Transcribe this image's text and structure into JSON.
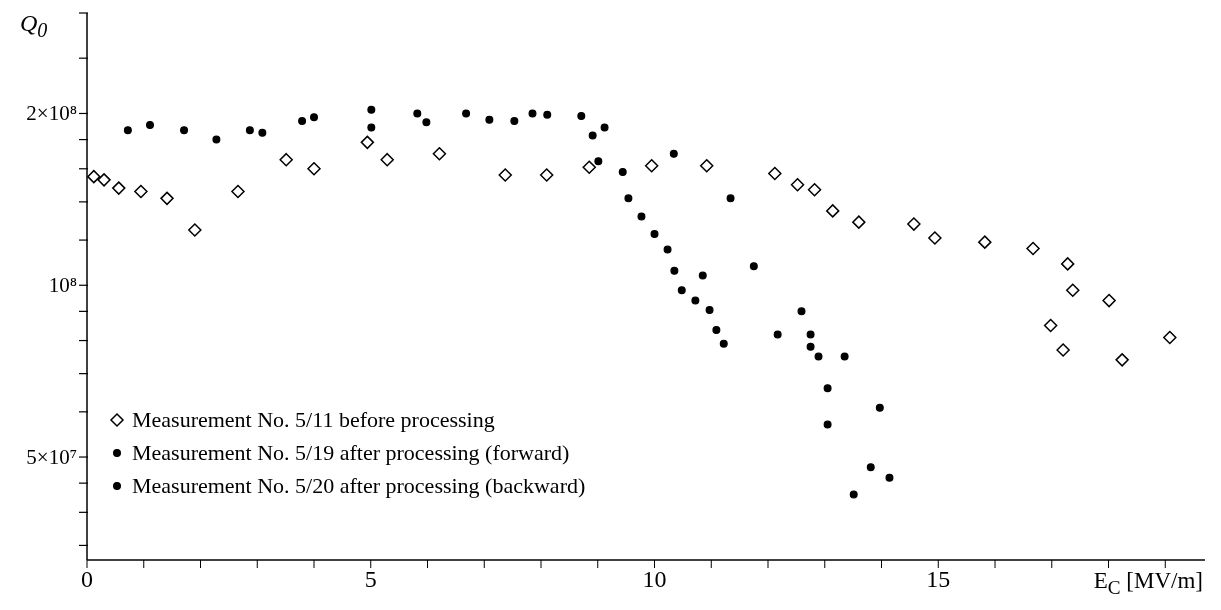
{
  "chart_data": {
    "type": "scatter",
    "xlabel": "E$_{C}$ [MV/m]",
    "ylabel": "Q$_{0}$",
    "log": "y",
    "legend": "bottom left",
    "xlim": [
      0,
      19.7
    ],
    "xticks": [
      0,
      {
        "value": 1,
        "label": null
      },
      {
        "value": 2,
        "label": null
      },
      {
        "value": 3,
        "label": null
      },
      {
        "value": 4,
        "label": null
      },
      5,
      {
        "value": 6,
        "label": null
      },
      {
        "value": 7,
        "label": null
      },
      {
        "value": 8,
        "label": null
      },
      {
        "value": 9,
        "label": null
      },
      10,
      {
        "value": 11,
        "label": null
      },
      {
        "value": 12,
        "label": null
      },
      {
        "value": 13,
        "label": null
      },
      {
        "value": 14,
        "label": null
      },
      15,
      {
        "value": 16,
        "label": null
      },
      {
        "value": 17,
        "label": null
      },
      {
        "value": 18,
        "label": null
      },
      {
        "value": 19,
        "label": null
      }
    ],
    "ylim": [
      33000000,
      300000000
    ],
    "yticks": [
      {
        "value": 35000000,
        "label": null
      },
      {
        "value": 40000000,
        "label": null
      },
      {
        "value": 45000000,
        "label": null
      },
      {
        "value": 50000000,
        "label": "5×10⁷"
      },
      {
        "value": 60000000,
        "label": null
      },
      {
        "value": 70000000,
        "label": null
      },
      {
        "value": 80000000,
        "label": null
      },
      {
        "value": 90000000,
        "label": null
      },
      {
        "value": 100000000,
        "label": "10⁸"
      },
      {
        "value": 120000000,
        "label": null
      },
      {
        "value": 140000000,
        "label": null
      },
      {
        "value": 160000000,
        "label": null
      },
      {
        "value": 180000000,
        "label": null
      },
      {
        "value": 200000000,
        "label": "2×10⁸"
      },
      {
        "value": 250000000,
        "label": null
      },
      {
        "value": 300000000,
        "label": null
      }
    ],
    "series": [
      {
        "name": "Measurement No. 5/11 before processing",
        "color": "#000000",
        "marker": "diamond",
        "x": [
          0.12,
          0.3,
          0.56,
          0.95,
          1.41,
          1.9,
          2.66,
          3.51,
          4.0,
          4.94,
          5.29,
          6.21,
          7.37,
          8.1,
          8.85,
          9.95,
          10.92,
          12.12,
          12.52,
          12.82,
          13.14,
          13.6,
          14.57,
          14.94,
          15.82,
          16.67,
          17.28,
          17.37,
          18.01,
          16.98,
          17.2,
          18.24,
          19.08
        ],
        "values": [
          155000000,
          153000000,
          148000000,
          146000000,
          142000000,
          125000000,
          146000000,
          166000000,
          160000000,
          178000000,
          166000000,
          170000000,
          156000000,
          156000000,
          161000000,
          162000000,
          162000000,
          157000000,
          150000000,
          147000000,
          135000000,
          129000000,
          128000000,
          121000000,
          119000000,
          116000000,
          109000000,
          98000000,
          94000000,
          85000000,
          77000000,
          74000000,
          81000000
        ]
      },
      {
        "name": "Measurement No. 5/19 after processing (forward)",
        "color": "#000000",
        "marker": "circle",
        "x": [
          0.72,
          1.11,
          1.71,
          2.28,
          3.09,
          4.0,
          5.01,
          5.98,
          7.09,
          7.53,
          8.11,
          8.71,
          8.91,
          9.01,
          9.44,
          9.54,
          9.77,
          10.0,
          10.23,
          10.35,
          10.85,
          10.48,
          10.72,
          10.97,
          11.09,
          11.22,
          12.17,
          12.75,
          12.75,
          12.89,
          13.05,
          13.05,
          13.81,
          14.14
        ],
        "values": [
          187000000,
          191000000,
          187000000,
          180000000,
          185000000,
          197000000,
          189000000,
          193000000,
          195000000,
          194000000,
          199000000,
          198000000,
          183000000,
          165000000,
          158000000,
          142000000,
          132000000,
          123000000,
          115500000,
          106000000,
          104000000,
          98000000,
          94000000,
          90500000,
          83500000,
          79000000,
          82000000,
          82000000,
          78000000,
          75000000,
          66000000,
          57000000,
          48000000,
          46000000
        ]
      },
      {
        "name": "Measurement No. 5/20 after processing (backward)",
        "color": "#000000",
        "marker": "circle",
        "x": [
          2.87,
          3.79,
          5.01,
          5.82,
          6.68,
          7.85,
          9.12,
          10.34,
          11.34,
          11.75,
          12.59,
          13.35,
          13.97,
          13.51
        ],
        "values": [
          187000000,
          194000000,
          203000000,
          200000000,
          200000000,
          200000000,
          189000000,
          170000000,
          142000000,
          108000000,
          90000000,
          75000000,
          61000000,
          43000000
        ]
      }
    ]
  }
}
